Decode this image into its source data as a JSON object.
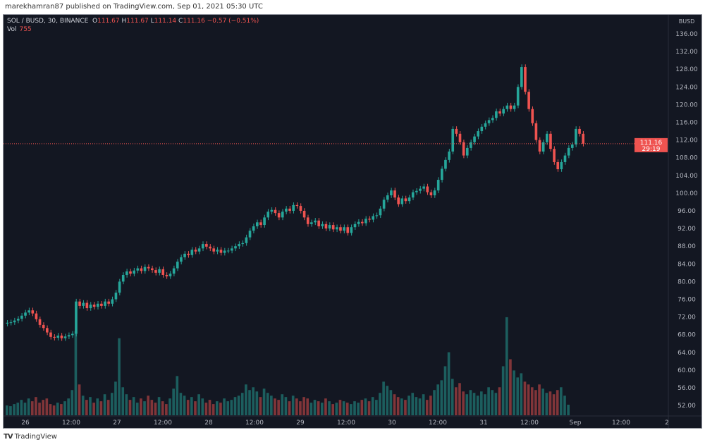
{
  "header": {
    "published": "marekhamran87 published on TradingView.com, Sep 01, 2021 05:30 UTC"
  },
  "legend": {
    "symbol": "SOL / BUSD, 30, BINANCE",
    "o_label": "O",
    "open": "111.67",
    "h_label": "H",
    "high": "111.67",
    "l_label": "L",
    "low": "111.14",
    "c_label": "C",
    "close": "111.16",
    "change": "−0.57 (−0.51%)",
    "vol_label": "Vol",
    "vol_value": "755"
  },
  "footer": {
    "brand": "TradingView",
    "logo": "TV"
  },
  "colors": {
    "background": "#131722",
    "up": "#26a69a",
    "down": "#ef5350",
    "text": "#d1d4dc"
  },
  "chart_data": {
    "type": "candlestick",
    "symbol": "SOL / BUSD",
    "interval": "30",
    "currency_label": "BUSD",
    "last_price": "111.16",
    "countdown": "29:19",
    "ylim": [
      50,
      140
    ],
    "y_ticks": [
      "136.00",
      "132.00",
      "128.00",
      "124.00",
      "120.00",
      "116.00",
      "112.00",
      "108.00",
      "104.00",
      "100.00",
      "96.00",
      "92.00",
      "88.00",
      "84.00",
      "80.00",
      "76.00",
      "72.00",
      "68.00",
      "64.00",
      "60.00",
      "56.00",
      "52.00"
    ],
    "x_ticks": [
      "26",
      "12:00",
      "27",
      "12:00",
      "28",
      "12:00",
      "29",
      "12:00",
      "30",
      "12:00",
      "31",
      "12:00",
      "Sep",
      "12:00",
      "2"
    ],
    "grid": false,
    "closes": [
      70.7,
      70.8,
      71.2,
      71.6,
      72.3,
      73.0,
      73.5,
      72.8,
      71.5,
      70.2,
      69.5,
      68.5,
      67.5,
      67.3,
      67.8,
      67.2,
      67.6,
      67.9,
      68.2,
      75.5,
      74.5,
      75.2,
      74.0,
      74.8,
      74.3,
      75.0,
      74.5,
      75.5,
      75.0,
      76.0,
      77.5,
      80.0,
      81.5,
      82.3,
      81.8,
      82.5,
      83.0,
      82.4,
      83.3,
      83.0,
      82.6,
      82.0,
      82.8,
      81.5,
      81.2,
      81.8,
      83.0,
      84.5,
      85.5,
      86.3,
      86.0,
      87.2,
      86.8,
      87.5,
      88.5,
      87.9,
      87.5,
      86.8,
      87.2,
      86.5,
      87.0,
      87.0,
      87.5,
      88.0,
      88.5,
      88.7,
      90.0,
      91.5,
      92.5,
      93.4,
      92.8,
      94.5,
      95.8,
      96.2,
      95.5,
      94.5,
      95.8,
      96.5,
      96.0,
      97.3,
      97.1,
      96.0,
      94.5,
      93.0,
      93.4,
      93.8,
      92.5,
      93.0,
      92.0,
      92.8,
      91.8,
      92.3,
      91.5,
      92.3,
      91.0,
      92.3,
      93.0,
      93.5,
      93.2,
      94.2,
      94.0,
      94.8,
      95.0,
      96.5,
      98.5,
      99.5,
      100.6,
      99.0,
      97.5,
      98.8,
      98.2,
      99.0,
      100.2,
      100.5,
      101.0,
      101.5,
      100.2,
      99.5,
      100.6,
      103.0,
      105.5,
      107.5,
      109.4,
      114.5,
      113.4,
      111.5,
      108.5,
      110.2,
      111.5,
      112.8,
      114.0,
      115.0,
      115.8,
      116.5,
      117.0,
      118.5,
      118.0,
      119.0,
      119.8,
      119.0,
      119.8,
      124.0,
      128.5,
      122.9,
      119.0,
      115.8,
      112.0,
      109.4,
      111.5,
      113.4,
      110.0,
      107.0,
      105.4,
      107.0,
      108.5,
      110.2,
      111.0,
      114.5,
      113.4,
      111.16
    ],
    "volumes": [
      700,
      650,
      800,
      900,
      1100,
      900,
      1200,
      1000,
      1300,
      900,
      1100,
      1200,
      800,
      700,
      900,
      800,
      1000,
      1200,
      1800,
      6000,
      2200,
      1400,
      1100,
      1300,
      900,
      1200,
      1000,
      1500,
      1100,
      1600,
      2400,
      5500,
      2000,
      1500,
      1100,
      1300,
      900,
      1200,
      1000,
      1400,
      1100,
      900,
      1300,
      1000,
      800,
      1200,
      1900,
      2800,
      1600,
      1400,
      1100,
      1300,
      1000,
      1500,
      1200,
      900,
      1100,
      800,
      1000,
      900,
      1200,
      1000,
      1100,
      1300,
      1400,
      1600,
      2200,
      1800,
      2000,
      1700,
      1300,
      1900,
      1600,
      1400,
      1200,
      1100,
      1500,
      1300,
      1000,
      1400,
      1200,
      1000,
      1300,
      1200,
      900,
      1100,
      1000,
      900,
      1200,
      1000,
      800,
      900,
      1100,
      1000,
      900,
      800,
      1000,
      900,
      1100,
      1200,
      1000,
      1300,
      1100,
      1600,
      2400,
      2100,
      1800,
      1500,
      1300,
      1200,
      1100,
      1400,
      1600,
      1300,
      1200,
      1500,
      1100,
      1400,
      1800,
      2200,
      2500,
      3500,
      4500,
      2600,
      2000,
      2300,
      1700,
      1500,
      1800,
      1600,
      1400,
      1700,
      1500,
      2000,
      1800,
      1600,
      2000,
      3500,
      7000,
      4000,
      3200,
      2700,
      3000,
      2400,
      2200,
      2000,
      1800,
      2200,
      1900,
      1600,
      1700,
      1500,
      1800,
      2000,
      1400,
      755
    ]
  }
}
